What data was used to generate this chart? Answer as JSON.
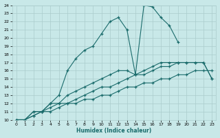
{
  "xlabel": "Humidex (Indice chaleur)",
  "bg_color": "#c8e8e8",
  "grid_color": "#aacccc",
  "line_color": "#1a6b6b",
  "xlim": [
    -0.5,
    23.5
  ],
  "ylim": [
    10,
    24
  ],
  "xticks": [
    0,
    1,
    2,
    3,
    4,
    5,
    6,
    7,
    8,
    9,
    10,
    11,
    12,
    13,
    14,
    15,
    16,
    17,
    18,
    19,
    20,
    21,
    22,
    23
  ],
  "yticks": [
    10,
    11,
    12,
    13,
    14,
    15,
    16,
    17,
    18,
    19,
    20,
    21,
    22,
    23,
    24
  ],
  "lines": [
    {
      "x": [
        0,
        1,
        2,
        3,
        4,
        5,
        6,
        7,
        8,
        9,
        10,
        11,
        12,
        13,
        14,
        15,
        16,
        17,
        18,
        19
      ],
      "y": [
        10,
        10,
        11,
        11,
        12,
        13,
        16,
        17.5,
        18.5,
        19,
        20.5,
        22,
        22.5,
        21,
        15.5,
        24,
        23.8,
        22.5,
        21.5,
        19.5
      ]
    },
    {
      "x": [
        0,
        1,
        2,
        3,
        4,
        5,
        6,
        7,
        8,
        9,
        10,
        11,
        12,
        13,
        14,
        15,
        16,
        17,
        18,
        19,
        20,
        21,
        22,
        23
      ],
      "y": [
        10,
        10,
        11,
        11,
        12,
        12,
        13,
        13.5,
        14,
        14.5,
        15,
        15.5,
        16,
        16,
        15.5,
        16,
        16.5,
        17,
        17,
        17,
        17,
        17,
        17,
        15
      ]
    },
    {
      "x": [
        0,
        1,
        2,
        3,
        4,
        5,
        6,
        7,
        8,
        9,
        10,
        11,
        12,
        13,
        14,
        15,
        16,
        17,
        18,
        19,
        20,
        21,
        22,
        23
      ],
      "y": [
        10,
        10,
        10.5,
        11,
        11.5,
        12,
        12,
        12.5,
        13,
        13.5,
        14,
        14,
        14.5,
        15,
        15.5,
        15.5,
        16,
        16.5,
        16.5,
        17,
        17,
        17,
        17,
        15
      ]
    },
    {
      "x": [
        0,
        1,
        2,
        3,
        4,
        5,
        6,
        7,
        8,
        9,
        10,
        11,
        12,
        13,
        14,
        15,
        16,
        17,
        18,
        19,
        20,
        21,
        22,
        23
      ],
      "y": [
        10,
        10,
        10.5,
        11,
        11,
        11.5,
        12,
        12,
        12.5,
        12.5,
        13,
        13,
        13.5,
        14,
        14,
        14.5,
        14.5,
        15,
        15,
        15.5,
        15.5,
        16,
        16,
        16
      ]
    }
  ]
}
